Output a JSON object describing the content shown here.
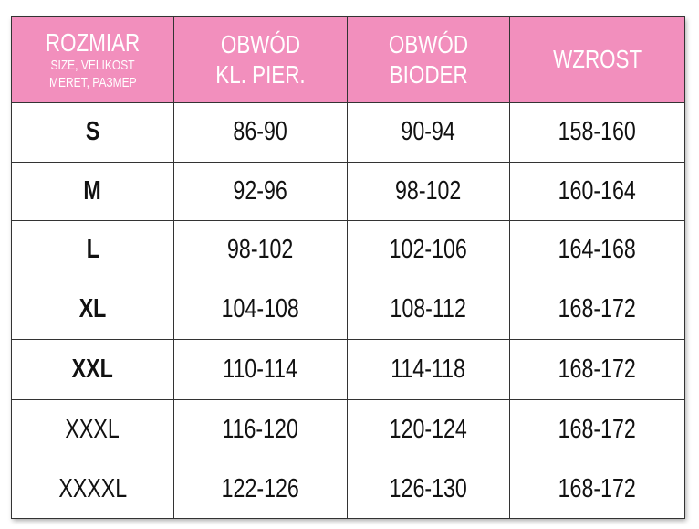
{
  "table": {
    "header": [
      [
        "ROZMIAR",
        "SIZE, VELIKOST",
        "MERET, РАЗМЕР"
      ],
      [
        "OBWÓD",
        "KL. PIER."
      ],
      [
        "OBWÓD",
        "BIODER"
      ],
      [
        "WZROST"
      ]
    ],
    "rows": [
      [
        "S",
        "86-90",
        "90-94",
        "158-160"
      ],
      [
        "M",
        "92-96",
        "98-102",
        "160-164"
      ],
      [
        "L",
        "98-102",
        "102-106",
        "164-168"
      ],
      [
        "XL",
        "104-108",
        "108-112",
        "168-172"
      ],
      [
        "XXL",
        "110-114",
        "114-118",
        "168-172"
      ],
      [
        "XXXL",
        "116-120",
        "120-124",
        "168-172"
      ],
      [
        "XXXXL",
        "122-126",
        "126-130",
        "168-172"
      ]
    ]
  }
}
